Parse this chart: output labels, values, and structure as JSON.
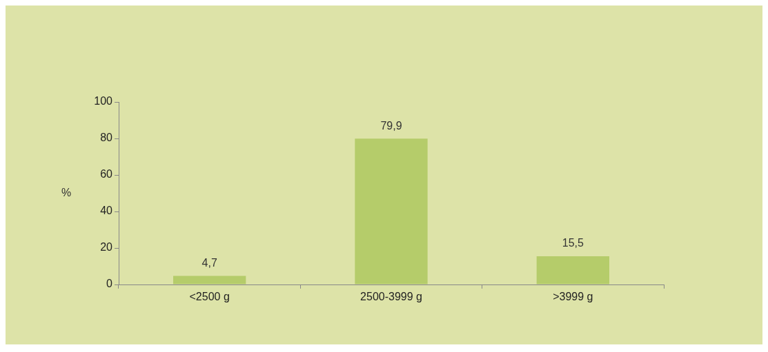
{
  "chart_data": {
    "type": "bar",
    "ylabel": "%",
    "categories": [
      "<2500 g",
      "2500-3999 g",
      ">3999 g"
    ],
    "values": [
      4.7,
      79.9,
      15.5
    ],
    "color": "#b5cc6a",
    "value_labels": [
      "4,7",
      "79,9",
      "15,5"
    ],
    "ylim": [
      0,
      100
    ],
    "yticks": [
      0,
      20,
      40,
      60,
      80,
      100
    ],
    "grid": false,
    "legend": false
  }
}
